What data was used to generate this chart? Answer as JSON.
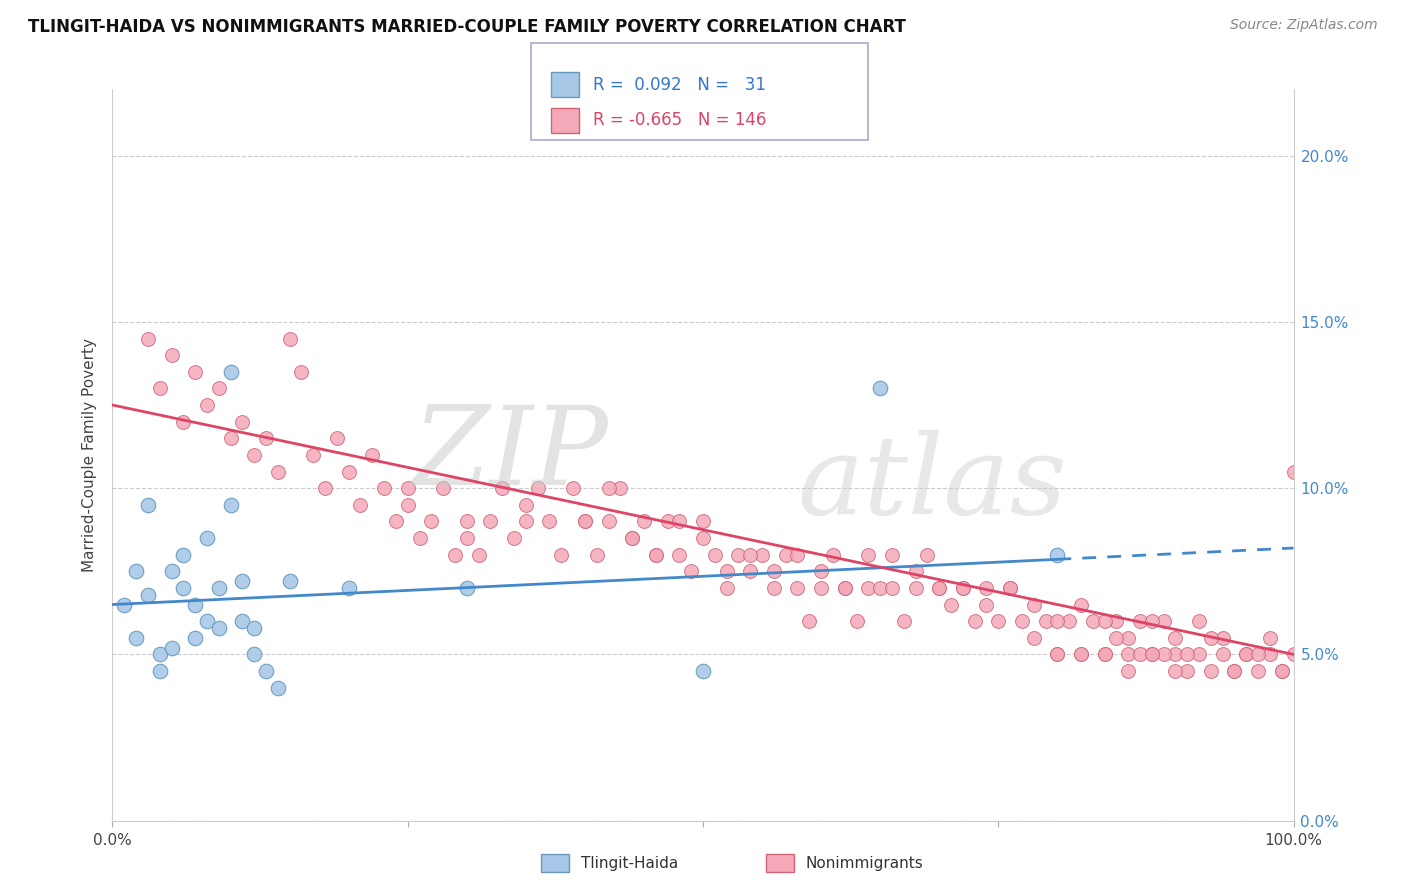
{
  "title": "TLINGIT-HAIDA VS NONIMMIGRANTS MARRIED-COUPLE FAMILY POVERTY CORRELATION CHART",
  "source": "Source: ZipAtlas.com",
  "ylabel": "Married-Couple Family Poverty",
  "xlim": [
    0,
    100
  ],
  "ylim": [
    0,
    22
  ],
  "tlingit_color": "#a8c8e8",
  "tlingit_edge_color": "#6699bb",
  "nonimm_color": "#f4a8b8",
  "nonimm_edge_color": "#cc6677",
  "trend_blue": "#4488cc",
  "trend_pink": "#dd4466",
  "blue_trend_x0": 0,
  "blue_trend_y0": 6.5,
  "blue_trend_x1": 100,
  "blue_trend_y1": 8.2,
  "blue_solid_end": 80,
  "pink_trend_x0": 0,
  "pink_trend_y0": 12.5,
  "pink_trend_x1": 100,
  "pink_trend_y1": 5.0,
  "tlingit_x": [
    1,
    2,
    2,
    3,
    3,
    4,
    4,
    5,
    5,
    6,
    6,
    7,
    7,
    8,
    8,
    9,
    9,
    10,
    10,
    11,
    11,
    12,
    12,
    13,
    14,
    15,
    20,
    30,
    50,
    65,
    80
  ],
  "tlingit_y": [
    6.5,
    7.5,
    5.5,
    9.5,
    6.8,
    5.0,
    4.5,
    7.5,
    5.2,
    8.0,
    7.0,
    6.5,
    5.5,
    8.5,
    6.0,
    7.0,
    5.8,
    13.5,
    9.5,
    7.2,
    6.0,
    5.8,
    5.0,
    4.5,
    4.0,
    7.2,
    7.0,
    7.0,
    4.5,
    13.0,
    8.0
  ],
  "nonimm_x": [
    3,
    4,
    5,
    6,
    7,
    8,
    9,
    10,
    11,
    12,
    13,
    14,
    15,
    16,
    17,
    18,
    19,
    20,
    21,
    22,
    23,
    24,
    25,
    26,
    27,
    28,
    29,
    30,
    31,
    32,
    33,
    34,
    35,
    36,
    37,
    38,
    39,
    40,
    41,
    42,
    43,
    44,
    45,
    46,
    47,
    48,
    49,
    50,
    51,
    52,
    53,
    54,
    55,
    56,
    57,
    58,
    59,
    60,
    61,
    62,
    63,
    64,
    65,
    66,
    67,
    68,
    69,
    70,
    71,
    72,
    73,
    74,
    75,
    76,
    77,
    78,
    79,
    80,
    81,
    82,
    83,
    84,
    85,
    86,
    87,
    88,
    89,
    90,
    91,
    92,
    93,
    94,
    95,
    96,
    97,
    98,
    99,
    100,
    25,
    30,
    35,
    40,
    42,
    44,
    46,
    48,
    50,
    52,
    54,
    56,
    58,
    60,
    62,
    64,
    66,
    68,
    70,
    72,
    74,
    76,
    78,
    80,
    82,
    84,
    86,
    88,
    90,
    92,
    94,
    96,
    98,
    100,
    85,
    87,
    89,
    91,
    93,
    95,
    97,
    99,
    80,
    82,
    84,
    86,
    88,
    90
  ],
  "nonimm_y": [
    14.5,
    13.0,
    14.0,
    12.0,
    13.5,
    12.5,
    13.0,
    11.5,
    12.0,
    11.0,
    11.5,
    10.5,
    14.5,
    13.5,
    11.0,
    10.0,
    11.5,
    10.5,
    9.5,
    11.0,
    10.0,
    9.0,
    10.0,
    8.5,
    9.0,
    10.0,
    8.0,
    9.0,
    8.0,
    9.0,
    10.0,
    8.5,
    9.0,
    10.0,
    9.0,
    8.0,
    10.0,
    9.0,
    8.0,
    9.0,
    10.0,
    8.5,
    9.0,
    8.0,
    9.0,
    8.0,
    7.5,
    9.0,
    8.0,
    7.0,
    8.0,
    7.5,
    8.0,
    7.0,
    8.0,
    7.0,
    6.0,
    7.0,
    8.0,
    7.0,
    6.0,
    7.0,
    7.0,
    8.0,
    6.0,
    7.0,
    8.0,
    7.0,
    6.5,
    7.0,
    6.0,
    7.0,
    6.0,
    7.0,
    6.0,
    5.5,
    6.0,
    5.0,
    6.0,
    5.0,
    6.0,
    5.0,
    6.0,
    5.0,
    6.0,
    5.0,
    6.0,
    5.0,
    4.5,
    5.0,
    4.5,
    5.0,
    4.5,
    5.0,
    4.5,
    5.0,
    4.5,
    10.5,
    9.5,
    8.5,
    9.5,
    9.0,
    10.0,
    8.5,
    8.0,
    9.0,
    8.5,
    7.5,
    8.0,
    7.5,
    8.0,
    7.5,
    7.0,
    8.0,
    7.0,
    7.5,
    7.0,
    7.0,
    6.5,
    7.0,
    6.5,
    6.0,
    6.5,
    6.0,
    5.5,
    6.0,
    5.5,
    6.0,
    5.5,
    5.0,
    5.5,
    5.0,
    5.5,
    5.0,
    5.0,
    5.0,
    5.5,
    4.5,
    5.0,
    4.5,
    5.0,
    5.0,
    5.0,
    4.5,
    5.0,
    4.5
  ]
}
